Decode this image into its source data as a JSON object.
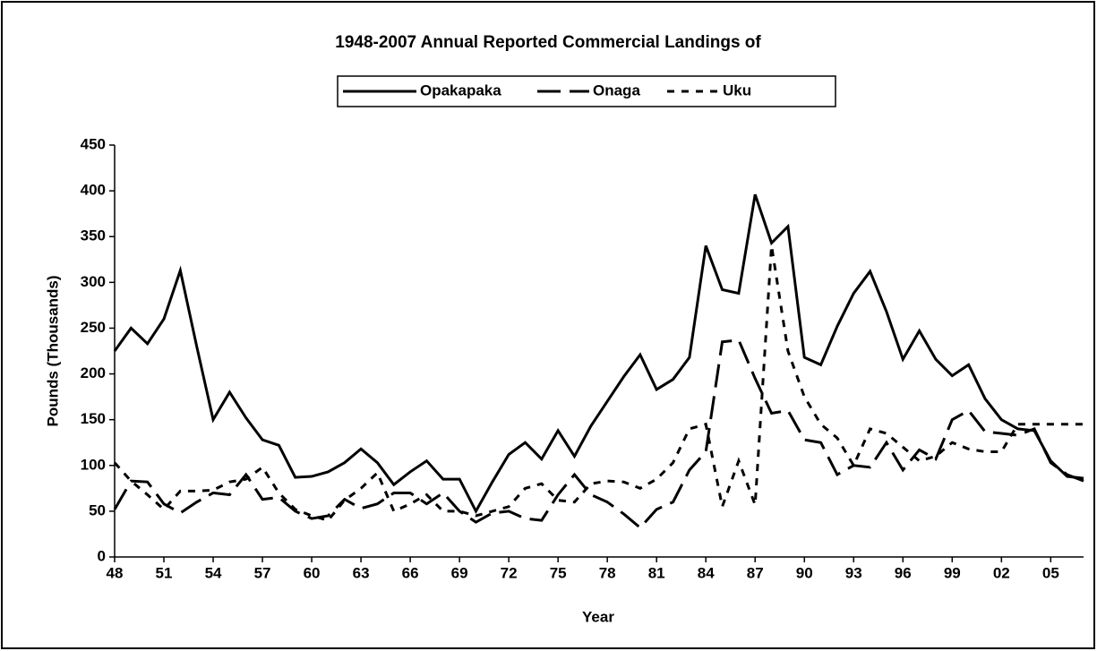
{
  "chart_data": {
    "type": "line",
    "title": "1948-2007 Annual Reported Commercial Landings of",
    "x_label": "Year",
    "y_label": "Pounds (Thousands)",
    "categories": [
      "48",
      null,
      null,
      "51",
      null,
      null,
      "54",
      null,
      null,
      "57",
      null,
      null,
      "60",
      null,
      null,
      "63",
      null,
      null,
      "66",
      null,
      null,
      "69",
      null,
      null,
      "72",
      null,
      null,
      "75",
      null,
      null,
      "78",
      null,
      null,
      "81",
      null,
      null,
      "84",
      null,
      null,
      "87",
      null,
      null,
      "90",
      null,
      null,
      "93",
      null,
      null,
      "96",
      null,
      null,
      "99",
      null,
      null,
      "02",
      null,
      null,
      "05",
      null,
      null
    ],
    "series": [
      {
        "name": "Opakapaka",
        "color": "#000000",
        "dash": "solid",
        "values": [
          225,
          250,
          233,
          260,
          313,
          230,
          150,
          180,
          152,
          128,
          122,
          87,
          88,
          93,
          103,
          118,
          103,
          79,
          93,
          105,
          85,
          85,
          50,
          82,
          112,
          125,
          107,
          138,
          110,
          143,
          170,
          197,
          221,
          183,
          194,
          218,
          340,
          292,
          288,
          396,
          343,
          361,
          218,
          210,
          252,
          288,
          312,
          268,
          216,
          247,
          216,
          198,
          210,
          173,
          150,
          140,
          138,
          105,
          88,
          86
        ]
      },
      {
        "name": "Onaga",
        "color": "#000000",
        "dash": "long",
        "values": [
          52,
          83,
          82,
          58,
          48,
          60,
          70,
          68,
          90,
          63,
          65,
          50,
          42,
          45,
          63,
          53,
          58,
          70,
          70,
          58,
          70,
          50,
          38,
          48,
          50,
          42,
          40,
          68,
          90,
          68,
          60,
          47,
          32,
          52,
          60,
          95,
          115,
          235,
          237,
          195,
          157,
          160,
          128,
          125,
          90,
          100,
          98,
          125,
          95,
          117,
          107,
          150,
          160,
          137,
          135,
          133,
          140,
          103,
          90,
          83
        ]
      },
      {
        "name": "Uku",
        "color": "#000000",
        "dash": "short",
        "values": [
          103,
          83,
          68,
          52,
          72,
          72,
          73,
          82,
          85,
          98,
          70,
          52,
          45,
          40,
          62,
          75,
          92,
          50,
          58,
          68,
          50,
          50,
          45,
          50,
          55,
          75,
          80,
          62,
          60,
          80,
          83,
          82,
          75,
          85,
          103,
          140,
          145,
          55,
          105,
          57,
          340,
          225,
          175,
          145,
          130,
          100,
          140,
          135,
          120,
          105,
          110,
          125,
          118,
          115,
          115,
          145,
          145,
          145,
          145,
          145
        ]
      }
    ],
    "ylim": [
      0,
      450
    ],
    "yticks": [
      0,
      50,
      100,
      150,
      200,
      250,
      300,
      350,
      400,
      450
    ],
    "grid": false,
    "legend": "top"
  }
}
